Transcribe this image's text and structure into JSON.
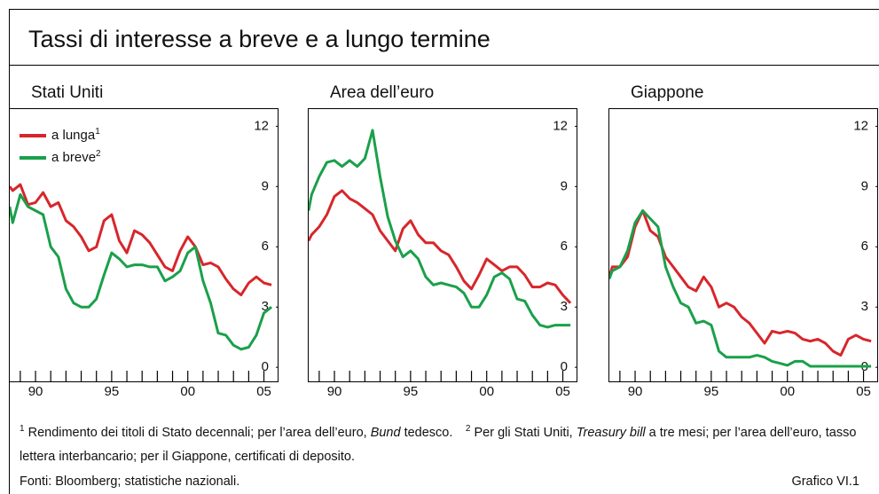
{
  "title": "Tassi di interesse a breve e a lungo termine",
  "chart_data": [
    {
      "type": "line",
      "title": "Stati Uniti",
      "legend": true,
      "x": [
        1988.3,
        1988.5,
        1989,
        1989.5,
        1990,
        1990.5,
        1991,
        1991.5,
        1992,
        1992.5,
        1993,
        1993.5,
        1994,
        1994.5,
        1995,
        1995.5,
        1996,
        1996.5,
        1997,
        1997.5,
        1998,
        1998.5,
        1999,
        1999.5,
        2000,
        2000.5,
        2001,
        2001.5,
        2002,
        2002.5,
        2003,
        2003.5,
        2004,
        2004.5,
        2005,
        2005.5
      ],
      "series": [
        {
          "name": "a lunga",
          "footnote": "1",
          "color": "#d7262b",
          "values": [
            9.0,
            8.8,
            9.1,
            8.1,
            8.2,
            8.7,
            8.0,
            8.2,
            7.3,
            7.0,
            6.5,
            5.8,
            6.0,
            7.3,
            7.6,
            6.3,
            5.7,
            6.8,
            6.6,
            6.2,
            5.6,
            5.0,
            4.8,
            5.8,
            6.5,
            6.0,
            5.1,
            5.2,
            5.0,
            4.4,
            3.9,
            3.6,
            4.2,
            4.5,
            4.2,
            4.1
          ]
        },
        {
          "name": "a breve",
          "footnote": "2",
          "color": "#1aa04a",
          "values": [
            8.0,
            7.2,
            8.6,
            8.0,
            7.8,
            7.6,
            6.0,
            5.5,
            3.9,
            3.2,
            3.0,
            3.0,
            3.4,
            4.6,
            5.7,
            5.4,
            5.0,
            5.1,
            5.1,
            5.0,
            5.0,
            4.3,
            4.5,
            4.8,
            5.7,
            6.0,
            4.3,
            3.2,
            1.7,
            1.6,
            1.1,
            0.9,
            1.0,
            1.6,
            2.7,
            3.0
          ]
        }
      ],
      "xlim": [
        1988.25,
        2005.9
      ],
      "ylim": [
        -0.7,
        12.9
      ],
      "xticks": [
        {
          "value": 1990,
          "label": "90"
        },
        {
          "value": 1995,
          "label": "95"
        },
        {
          "value": 2000,
          "label": "00"
        },
        {
          "value": 2005,
          "label": "05"
        }
      ],
      "xminorticks": [
        1989,
        1991,
        1992,
        1993,
        1994,
        1996,
        1997,
        1998,
        1999,
        2001,
        2002,
        2003,
        2004
      ],
      "yticks": [
        0,
        3,
        6,
        9,
        12
      ]
    },
    {
      "type": "line",
      "title": "Area dell’euro",
      "legend": false,
      "x": [
        1988.3,
        1988.5,
        1989,
        1989.5,
        1990,
        1990.5,
        1991,
        1991.5,
        1992,
        1992.5,
        1993,
        1993.5,
        1994,
        1994.5,
        1995,
        1995.5,
        1996,
        1996.5,
        1997,
        1997.5,
        1998,
        1998.5,
        1999,
        1999.5,
        2000,
        2000.5,
        2001,
        2001.5,
        2002,
        2002.5,
        2003,
        2003.5,
        2004,
        2004.5,
        2005,
        2005.5
      ],
      "series": [
        {
          "color": "#d7262b",
          "values": [
            6.3,
            6.6,
            7.0,
            7.6,
            8.5,
            8.8,
            8.4,
            8.2,
            7.9,
            7.6,
            6.8,
            6.3,
            5.8,
            6.9,
            7.3,
            6.6,
            6.2,
            6.2,
            5.8,
            5.6,
            5.0,
            4.3,
            3.9,
            4.6,
            5.4,
            5.1,
            4.8,
            5.0,
            5.0,
            4.6,
            4.0,
            4.0,
            4.2,
            4.1,
            3.6,
            3.2
          ]
        },
        {
          "color": "#1aa04a",
          "values": [
            7.8,
            8.6,
            9.5,
            10.2,
            10.3,
            10.0,
            10.3,
            10.0,
            10.4,
            11.8,
            9.5,
            7.5,
            6.3,
            5.5,
            5.8,
            5.4,
            4.5,
            4.1,
            4.2,
            4.1,
            4.0,
            3.7,
            3.0,
            3.0,
            3.6,
            4.5,
            4.7,
            4.4,
            3.4,
            3.3,
            2.6,
            2.1,
            2.0,
            2.1,
            2.1,
            2.1
          ]
        }
      ],
      "xlim": [
        1988.25,
        2005.9
      ],
      "ylim": [
        -0.7,
        12.9
      ],
      "xticks": [
        {
          "value": 1990,
          "label": "90"
        },
        {
          "value": 1995,
          "label": "95"
        },
        {
          "value": 2000,
          "label": "00"
        },
        {
          "value": 2005,
          "label": "05"
        }
      ],
      "xminorticks": [
        1989,
        1991,
        1992,
        1993,
        1994,
        1996,
        1997,
        1998,
        1999,
        2001,
        2002,
        2003,
        2004
      ],
      "yticks": [
        0,
        3,
        6,
        9,
        12
      ]
    },
    {
      "type": "line",
      "title": "Giappone",
      "legend": false,
      "x": [
        1988.3,
        1988.5,
        1989,
        1989.5,
        1990,
        1990.5,
        1991,
        1991.5,
        1992,
        1992.5,
        1993,
        1993.5,
        1994,
        1994.5,
        1995,
        1995.5,
        1996,
        1996.5,
        1997,
        1997.5,
        1998,
        1998.5,
        1999,
        1999.5,
        2000,
        2000.5,
        2001,
        2001.5,
        2002,
        2002.5,
        2003,
        2003.5,
        2004,
        2004.5,
        2005,
        2005.5
      ],
      "series": [
        {
          "color": "#d7262b",
          "values": [
            4.5,
            5.0,
            5.0,
            5.5,
            7.0,
            7.8,
            6.8,
            6.5,
            5.5,
            5.0,
            4.5,
            4.0,
            3.8,
            4.5,
            4.0,
            3.0,
            3.2,
            3.0,
            2.5,
            2.2,
            1.7,
            1.2,
            1.8,
            1.7,
            1.8,
            1.7,
            1.4,
            1.3,
            1.4,
            1.2,
            0.8,
            0.6,
            1.4,
            1.6,
            1.4,
            1.3
          ]
        },
        {
          "color": "#1aa04a",
          "values": [
            4.4,
            4.8,
            5.0,
            5.8,
            7.2,
            7.8,
            7.4,
            7.0,
            5.0,
            4.0,
            3.2,
            3.0,
            2.2,
            2.3,
            2.1,
            0.8,
            0.5,
            0.5,
            0.5,
            0.5,
            0.6,
            0.5,
            0.3,
            0.2,
            0.1,
            0.3,
            0.3,
            0.05,
            0.05,
            0.05,
            0.05,
            0.05,
            0.05,
            0.05,
            0.05,
            0.05
          ]
        }
      ],
      "xlim": [
        1988.25,
        2005.9
      ],
      "ylim": [
        -0.7,
        12.9
      ],
      "xticks": [
        {
          "value": 1990,
          "label": "90"
        },
        {
          "value": 1995,
          "label": "95"
        },
        {
          "value": 2000,
          "label": "00"
        },
        {
          "value": 2005,
          "label": "05"
        }
      ],
      "xminorticks": [
        1989,
        1991,
        1992,
        1993,
        1994,
        1996,
        1997,
        1998,
        1999,
        2001,
        2002,
        2003,
        2004
      ],
      "yticks": [
        0,
        3,
        6,
        9,
        12
      ]
    }
  ],
  "footnotes": [
    {
      "marker": "1",
      "parts": [
        "Rendimento dei titoli di Stato decennali; per l’area dell’euro, ",
        "Bund",
        " tedesco."
      ]
    },
    {
      "marker": "2",
      "parts": [
        "Per gli Stati Uniti, ",
        "Treasury bill",
        " a tre mesi; per l’area dell’euro, tasso lettera interbancario; per il Giappone, certificati di deposito."
      ]
    }
  ],
  "source": "Fonti: Bloomberg; statistiche nazionali.",
  "label": "Grafico VI.1"
}
